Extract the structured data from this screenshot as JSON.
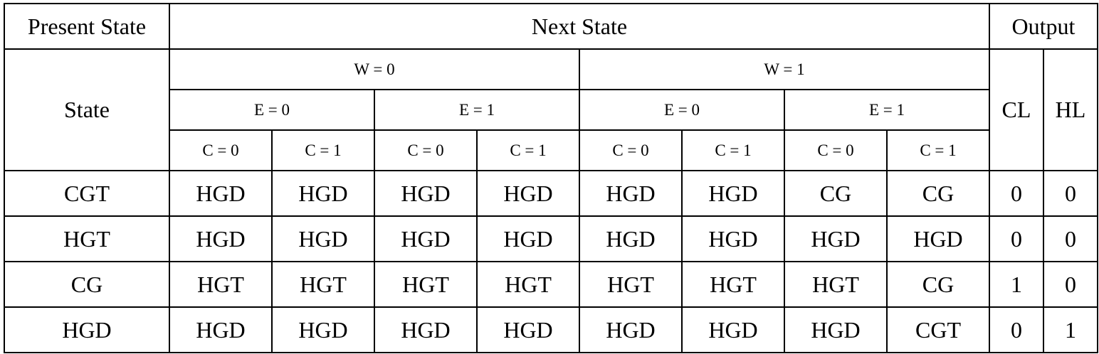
{
  "header": {
    "present_state": "Present State",
    "next_state": "Next State",
    "output": "Output",
    "state": "State",
    "w_groups": [
      "W = 0",
      "W = 1"
    ],
    "e_groups": [
      "E = 0",
      "E = 1",
      "E = 0",
      "E = 1"
    ],
    "c_cols": [
      "C = 0",
      "C = 1",
      "C = 0",
      "C = 1",
      "C = 0",
      "C = 1",
      "C = 0",
      "C = 1"
    ],
    "outputs": [
      "CL",
      "HL"
    ]
  },
  "rows": [
    {
      "state": "CGT",
      "next": [
        "HGD",
        "HGD",
        "HGD",
        "HGD",
        "HGD",
        "HGD",
        "CG",
        "CG"
      ],
      "cl": "0",
      "hl": "0"
    },
    {
      "state": "HGT",
      "next": [
        "HGD",
        "HGD",
        "HGD",
        "HGD",
        "HGD",
        "HGD",
        "HGD",
        "HGD"
      ],
      "cl": "0",
      "hl": "0"
    },
    {
      "state": "CG",
      "next": [
        "HGT",
        "HGT",
        "HGT",
        "HGT",
        "HGT",
        "HGT",
        "HGT",
        "CG"
      ],
      "cl": "1",
      "hl": "0"
    },
    {
      "state": "HGD",
      "next": [
        "HGD",
        "HGD",
        "HGD",
        "HGD",
        "HGD",
        "HGD",
        "HGD",
        "CGT"
      ],
      "cl": "0",
      "hl": "1"
    }
  ]
}
